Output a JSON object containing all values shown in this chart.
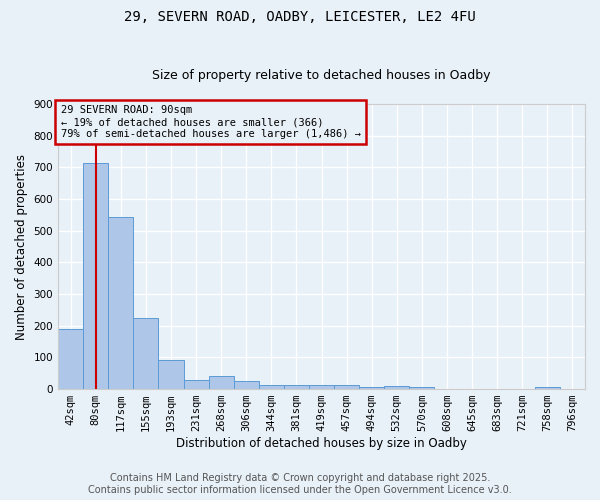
{
  "title_line1": "29, SEVERN ROAD, OADBY, LEICESTER, LE2 4FU",
  "title_line2": "Size of property relative to detached houses in Oadby",
  "xlabel": "Distribution of detached houses by size in Oadby",
  "ylabel": "Number of detached properties",
  "categories": [
    "42sqm",
    "80sqm",
    "117sqm",
    "155sqm",
    "193sqm",
    "231sqm",
    "268sqm",
    "306sqm",
    "344sqm",
    "381sqm",
    "419sqm",
    "457sqm",
    "494sqm",
    "532sqm",
    "570sqm",
    "608sqm",
    "645sqm",
    "683sqm",
    "721sqm",
    "758sqm",
    "796sqm"
  ],
  "values": [
    190,
    715,
    543,
    223,
    92,
    28,
    40,
    25,
    13,
    13,
    12,
    12,
    8,
    9,
    6,
    0,
    0,
    0,
    0,
    7,
    0
  ],
  "bar_color": "#aec6e8",
  "bar_edge_color": "#5b9bd5",
  "bg_color": "#e8f0f8",
  "grid_color": "#ffffff",
  "vline_x": 1,
  "vline_color": "#cc0000",
  "annotation_text": "29 SEVERN ROAD: 90sqm\n← 19% of detached houses are smaller (366)\n79% of semi-detached houses are larger (1,486) →",
  "annotation_box_color": "#cc0000",
  "ylim": [
    0,
    900
  ],
  "yticks": [
    0,
    100,
    200,
    300,
    400,
    500,
    600,
    700,
    800,
    900
  ],
  "footer_line1": "Contains HM Land Registry data © Crown copyright and database right 2025.",
  "footer_line2": "Contains public sector information licensed under the Open Government Licence v3.0.",
  "title_fontsize": 10,
  "subtitle_fontsize": 9,
  "label_fontsize": 8.5,
  "tick_fontsize": 7.5,
  "annotation_fontsize": 7.5,
  "footer_fontsize": 7
}
